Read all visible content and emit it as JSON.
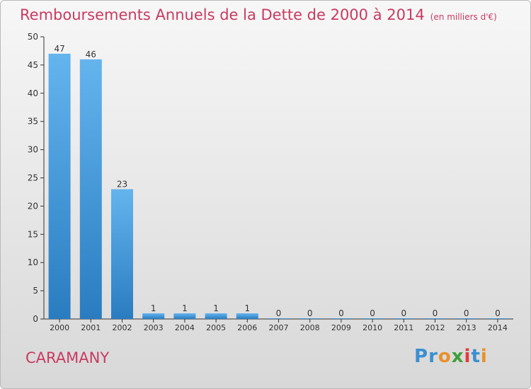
{
  "title": "Remboursements Annuels de la Dette de 2000 à 2014",
  "unit": "(en milliers d'€)",
  "commune": "CARAMANY",
  "logo": {
    "letters": [
      "P",
      "r",
      "o",
      "x",
      "i",
      "t",
      "i"
    ],
    "colors": [
      "#3a8fd0",
      "#3a8fd0",
      "#e8912b",
      "#3f9f38",
      "#e33a3a",
      "#3a8fd0",
      "#e8912b"
    ]
  },
  "colors": {
    "title": "#c93a62",
    "bar_top": "#64b4ee",
    "bar_bottom": "#2a7cc0",
    "axis": "#333333"
  },
  "chart_data": {
    "type": "bar",
    "title": "Remboursements Annuels de la Dette de 2000 à 2014",
    "categories": [
      "2000",
      "2001",
      "2002",
      "2003",
      "2004",
      "2005",
      "2006",
      "2007",
      "2008",
      "2009",
      "2010",
      "2011",
      "2012",
      "2013",
      "2014"
    ],
    "values": [
      47,
      46,
      23,
      1,
      1,
      1,
      1,
      0,
      0,
      0,
      0,
      0,
      0,
      0,
      0
    ],
    "ylim": [
      0,
      50
    ],
    "yticks": [
      0,
      5,
      10,
      15,
      20,
      25,
      30,
      35,
      40,
      45,
      50
    ],
    "grid": false,
    "data_labels": true
  }
}
